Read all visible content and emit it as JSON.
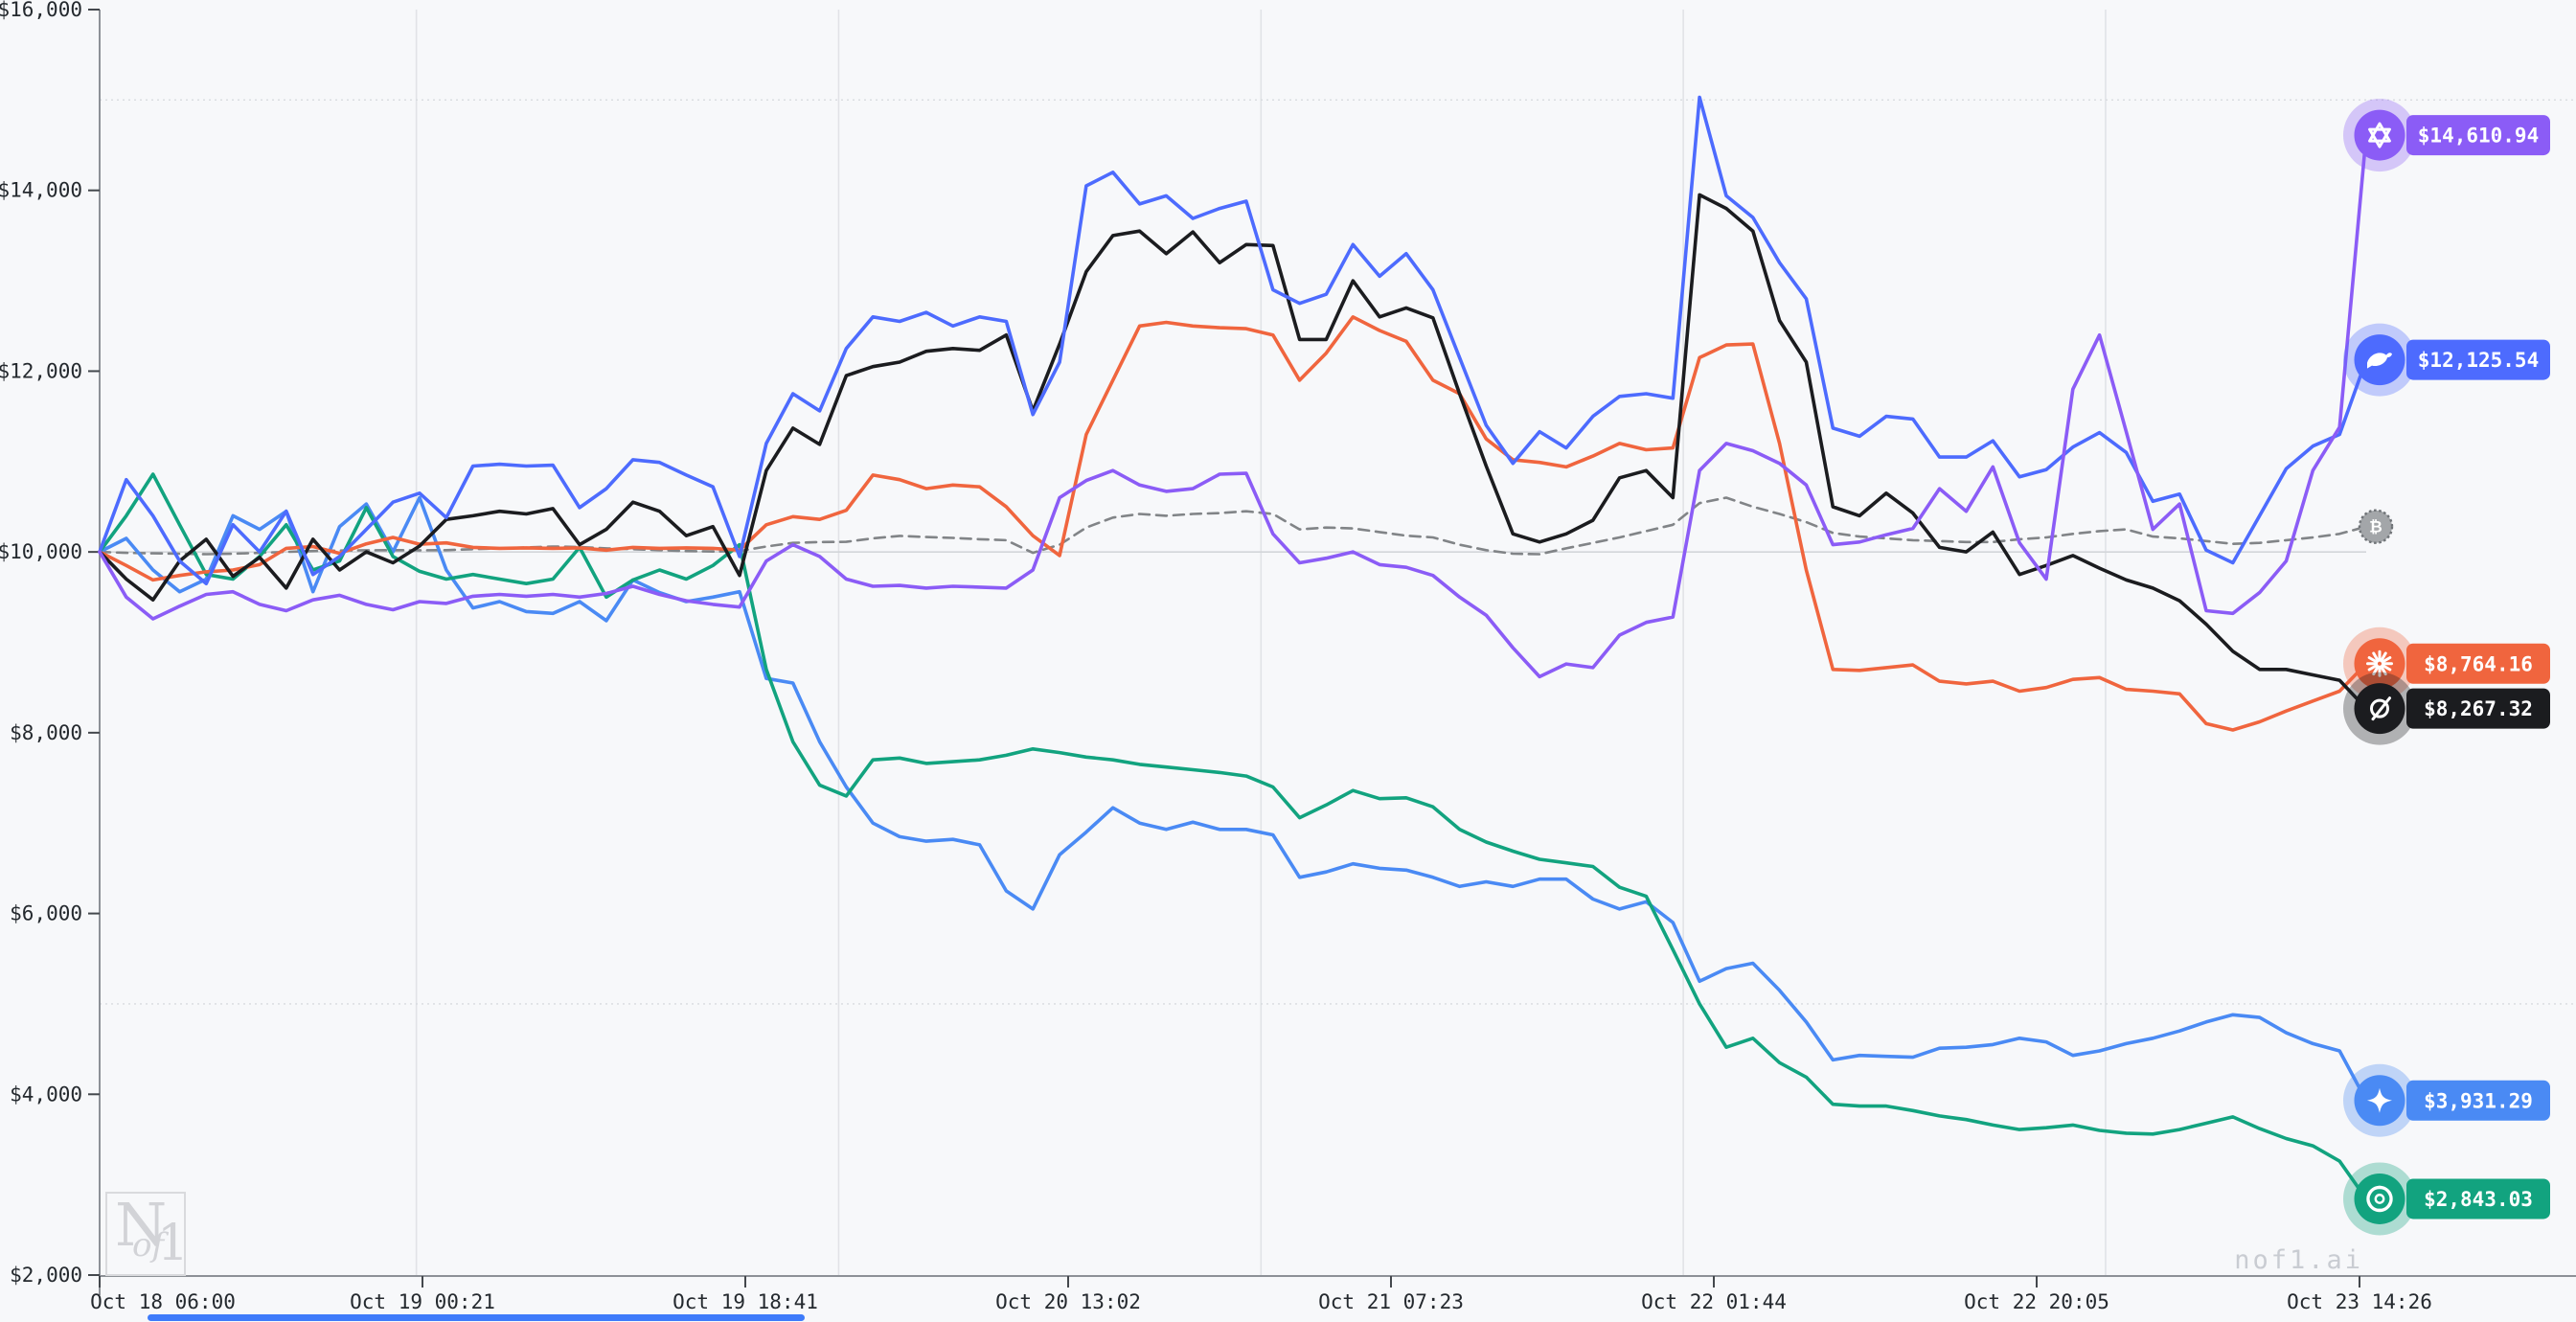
{
  "watermark": {
    "logo_n": "N",
    "logo_of": "of",
    "logo_1": "1",
    "site": "nof1.ai"
  },
  "chart_data": {
    "type": "line",
    "title": "",
    "xlabel": "",
    "ylabel": "",
    "x_tick_labels": [
      "Oct 18 06:00",
      "Oct 19 00:21",
      "Oct 19 18:41",
      "Oct 20 13:02",
      "Oct 21 07:23",
      "Oct 22 01:44",
      "Oct 22 20:05",
      "Oct 23 14:26"
    ],
    "y_tick_labels": [
      "$16,000",
      "$14,000",
      "$12,000",
      "$10,000",
      "$8,000",
      "$6,000",
      "$4,000",
      "$2,000"
    ],
    "y_tick_values": [
      16000,
      14000,
      12000,
      10000,
      8000,
      6000,
      4000,
      2000
    ],
    "ylim": [
      2000,
      16000
    ],
    "x_span_hours": 128.43,
    "grid": {
      "h_dotted_values": [
        15000,
        5000
      ],
      "h_solid_values": [
        10000
      ],
      "v_day_hours": [
        18,
        42,
        66,
        90,
        114
      ]
    },
    "legend": "none (end-of-line icon markers with value badges)",
    "series": [
      {
        "id": "btc-benchmark",
        "icon": "bitcoin-icon",
        "color": "#818487",
        "dash": true,
        "badge_label": "",
        "values": [
          10000,
          9990,
          9985,
          9980,
          9975,
          9980,
          9990,
          10000,
          10010,
          10015,
          10019,
          10020,
          10019,
          10020,
          10030,
          10040,
          10050,
          10060,
          10055,
          10040,
          10030,
          10020,
          10010,
          10005,
          10010,
          10060,
          10100,
          10110,
          10112,
          10150,
          10177,
          10165,
          10155,
          10140,
          10130,
          9990,
          10080,
          10270,
          10380,
          10420,
          10400,
          10420,
          10430,
          10450,
          10420,
          10250,
          10270,
          10260,
          10220,
          10180,
          10160,
          10080,
          10020,
          9980,
          9975,
          10040,
          10100,
          10160,
          10230,
          10300,
          10540,
          10600,
          10500,
          10420,
          10330,
          10210,
          10170,
          10150,
          10130,
          10120,
          10110,
          10110,
          10140,
          10160,
          10200,
          10230,
          10250,
          10170,
          10150,
          10120,
          10090,
          10100,
          10130,
          10160,
          10200,
          10280
        ]
      },
      {
        "id": "gemini",
        "icon": "sparkle-icon",
        "color": "#4a8af4",
        "dash": false,
        "badge_label": "$3,931.29",
        "values": [
          10000,
          10150,
          9800,
          9560,
          9700,
          10400,
          10250,
          10450,
          9560,
          10280,
          10530,
          10000,
          10600,
          9800,
          9380,
          9450,
          9340,
          9320,
          9450,
          9240,
          9690,
          9550,
          9450,
          9500,
          9560,
          8600,
          8550,
          7900,
          7400,
          7000,
          6850,
          6800,
          6820,
          6760,
          6250,
          6050,
          6650,
          6900,
          7170,
          7000,
          6930,
          7010,
          6930,
          6930,
          6870,
          6400,
          6460,
          6550,
          6500,
          6480,
          6400,
          6300,
          6350,
          6300,
          6380,
          6380,
          6160,
          6050,
          6130,
          5900,
          5250,
          5390,
          5450,
          5150,
          4800,
          4380,
          4430,
          4420,
          4410,
          4510,
          4520,
          4550,
          4620,
          4580,
          4430,
          4480,
          4560,
          4620,
          4700,
          4800,
          4880,
          4850,
          4680,
          4560,
          4480,
          3931.29
        ]
      },
      {
        "id": "gpt5",
        "icon": "openai-icon",
        "color": "#12a37f",
        "dash": false,
        "badge_label": "$2,843.03",
        "values": [
          10000,
          10400,
          10860,
          10300,
          9750,
          9700,
          9950,
          10300,
          9800,
          9900,
          10490,
          9950,
          9785,
          9700,
          9750,
          9700,
          9650,
          9700,
          10050,
          9500,
          9690,
          9800,
          9700,
          9850,
          10080,
          8700,
          7900,
          7420,
          7300,
          7700,
          7720,
          7660,
          7680,
          7700,
          7750,
          7820,
          7780,
          7730,
          7700,
          7650,
          7620,
          7590,
          7560,
          7520,
          7400,
          7060,
          7200,
          7360,
          7270,
          7280,
          7180,
          6930,
          6790,
          6690,
          6600,
          6560,
          6520,
          6290,
          6190,
          5600,
          5000,
          4520,
          4620,
          4350,
          4190,
          3890,
          3870,
          3870,
          3820,
          3760,
          3720,
          3660,
          3610,
          3630,
          3660,
          3600,
          3570,
          3560,
          3610,
          3680,
          3750,
          3620,
          3510,
          3430,
          3260,
          2843.03
        ]
      },
      {
        "id": "claude",
        "icon": "starburst-icon",
        "color": "#f0653e",
        "dash": false,
        "badge_label": "$8,764.16",
        "values": [
          10000,
          9850,
          9690,
          9740,
          9780,
          9800,
          9860,
          10040,
          10060,
          9985,
          10090,
          10160,
          10085,
          10100,
          10050,
          10040,
          10045,
          10040,
          10045,
          10020,
          10050,
          10040,
          10045,
          10040,
          10020,
          10300,
          10390,
          10360,
          10460,
          10850,
          10800,
          10700,
          10740,
          10720,
          10500,
          10180,
          9960,
          11300,
          11900,
          12500,
          12540,
          12500,
          12480,
          12470,
          12400,
          11900,
          12200,
          12600,
          12450,
          12330,
          11900,
          11750,
          11250,
          11020,
          10990,
          10940,
          11060,
          11200,
          11130,
          11150,
          12150,
          12290,
          12300,
          11200,
          9800,
          8700,
          8690,
          8720,
          8750,
          8570,
          8540,
          8570,
          8460,
          8500,
          8590,
          8610,
          8480,
          8460,
          8430,
          8100,
          8030,
          8120,
          8240,
          8350,
          8460,
          8764.16
        ]
      },
      {
        "id": "grok",
        "icon": "slashed-circle-icon",
        "color": "#1b1c1f",
        "dash": false,
        "badge_label": "$8,267.32",
        "values": [
          10000,
          9700,
          9470,
          9900,
          10140,
          9730,
          9940,
          9600,
          10140,
          9800,
          10000,
          9880,
          10065,
          10360,
          10400,
          10450,
          10420,
          10480,
          10080,
          10250,
          10550,
          10450,
          10180,
          10280,
          9740,
          10900,
          11370,
          11190,
          11950,
          12050,
          12100,
          12220,
          12250,
          12230,
          12400,
          11560,
          12300,
          13100,
          13500,
          13550,
          13300,
          13540,
          13200,
          13400,
          13390,
          12350,
          12350,
          13000,
          12600,
          12700,
          12590,
          11750,
          10950,
          10200,
          10110,
          10200,
          10350,
          10820,
          10900,
          10600,
          13950,
          13800,
          13550,
          12560,
          12100,
          10500,
          10400,
          10650,
          10430,
          10050,
          10000,
          10220,
          9750,
          9850,
          9960,
          9820,
          9690,
          9600,
          9460,
          9200,
          8900,
          8700,
          8700,
          8640,
          8580,
          8267.32
        ]
      },
      {
        "id": "deepseek",
        "icon": "whale-icon",
        "color": "#4d6bfe",
        "dash": false,
        "badge_label": "$12,125.54",
        "values": [
          10000,
          10800,
          10400,
          9900,
          9650,
          10300,
          10000,
          10450,
          9750,
          9950,
          10250,
          10550,
          10650,
          10380,
          10950,
          10970,
          10950,
          10960,
          10490,
          10700,
          11020,
          10990,
          10850,
          10720,
          9950,
          11200,
          11750,
          11560,
          12250,
          12600,
          12550,
          12650,
          12500,
          12600,
          12550,
          11520,
          12100,
          14050,
          14200,
          13850,
          13940,
          13690,
          13800,
          13880,
          12900,
          12750,
          12850,
          13400,
          13050,
          13300,
          12900,
          12150,
          11400,
          10980,
          11330,
          11150,
          11500,
          11720,
          11750,
          11700,
          15030,
          13940,
          13700,
          13200,
          12800,
          11370,
          11280,
          11500,
          11470,
          11050,
          11050,
          11230,
          10830,
          10910,
          11160,
          11320,
          11100,
          10560,
          10640,
          10020,
          9880,
          10400,
          10920,
          11170,
          11300,
          12125.54
        ]
      },
      {
        "id": "qwen",
        "icon": "qwen-logo-icon",
        "color": "#8b5cf6",
        "dash": false,
        "badge_label": "$14,610.94",
        "values": [
          10000,
          9500,
          9260,
          9400,
          9530,
          9560,
          9420,
          9350,
          9470,
          9520,
          9420,
          9360,
          9450,
          9430,
          9510,
          9530,
          9510,
          9530,
          9500,
          9540,
          9620,
          9530,
          9460,
          9420,
          9390,
          9900,
          10080,
          9950,
          9700,
          9620,
          9630,
          9600,
          9620,
          9610,
          9600,
          9800,
          10600,
          10790,
          10900,
          10740,
          10670,
          10700,
          10860,
          10870,
          10200,
          9880,
          9930,
          10000,
          9860,
          9830,
          9740,
          9500,
          9300,
          8940,
          8620,
          8760,
          8720,
          9080,
          9220,
          9280,
          10900,
          11200,
          11120,
          10980,
          10740,
          10080,
          10110,
          10190,
          10260,
          10700,
          10450,
          10940,
          10100,
          9700,
          11800,
          12400,
          11330,
          10250,
          10530,
          9350,
          9320,
          9550,
          9900,
          10900,
          11380,
          14610.94
        ]
      }
    ]
  }
}
